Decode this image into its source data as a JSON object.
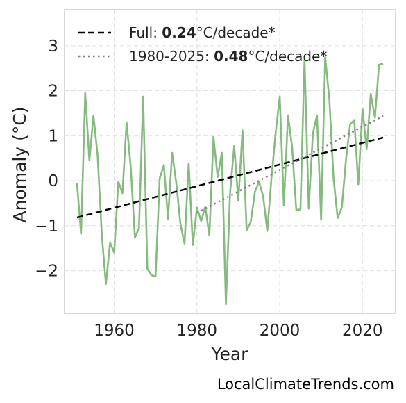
{
  "chart_data": {
    "type": "line",
    "xlabel": "Year",
    "ylabel": "Anomaly (°C)",
    "xlim": [
      1948,
      2028
    ],
    "ylim": [
      -2.95,
      3.8
    ],
    "xticks": [
      1960,
      1980,
      2000,
      2020
    ],
    "yticks": [
      -2,
      -1,
      0,
      1,
      2,
      3
    ],
    "ytick_labels": [
      "−2",
      "−1",
      "0",
      "1",
      "2",
      "3"
    ],
    "grid": true,
    "legend_position": "top-left",
    "colors": {
      "anomaly": "#86bb80",
      "trend_full": "#000000",
      "trend_recent": "#808080",
      "grid": "#e3e3e3",
      "frame": "#cccccc"
    },
    "series": [
      {
        "x": [
          1951,
          1952,
          1953,
          1954,
          1955,
          1956,
          1957,
          1958,
          1959,
          1960,
          1961,
          1962,
          1963,
          1964,
          1965,
          1966,
          1967,
          1968,
          1969,
          1970,
          1971,
          1972,
          1973,
          1974,
          1975,
          1976,
          1977,
          1978,
          1979,
          1980,
          1981,
          1982,
          1983,
          1984,
          1985,
          1986,
          1987,
          1988,
          1989,
          1990,
          1991,
          1992,
          1993,
          1994,
          1995,
          1996,
          1997,
          1998,
          1999,
          2000,
          2001,
          2002,
          2003,
          2004,
          2005,
          2006,
          2007,
          2008,
          2009,
          2010,
          2011,
          2012,
          2013,
          2014,
          2015,
          2016,
          2017,
          2018,
          2019,
          2020,
          2021,
          2022,
          2023,
          2024,
          2025
        ],
        "y": [
          -0.05,
          -1.18,
          1.95,
          0.45,
          1.45,
          0.55,
          -1.2,
          -2.3,
          -1.38,
          -1.6,
          -0.02,
          -0.28,
          1.3,
          0.3,
          -1.27,
          -1.05,
          1.87,
          -1.96,
          -2.1,
          -2.13,
          0.05,
          0.35,
          -0.85,
          0.62,
          -0.05,
          -0.95,
          -1.4,
          0.38,
          -1.43,
          -0.6,
          -0.9,
          -0.58,
          -1.22,
          0.97,
          0.08,
          0.62,
          -2.75,
          -0.28,
          0.78,
          -0.45,
          1.12,
          -1.1,
          -0.92,
          -0.25,
          -0.02,
          -0.35,
          -1.12,
          0.05,
          1.05,
          1.87,
          -0.55,
          1.45,
          0.75,
          -0.65,
          -0.64,
          2.7,
          -0.62,
          1.05,
          1.45,
          -0.87,
          2.75,
          1.8,
          0.05,
          -0.83,
          -0.6,
          0.45,
          1.25,
          1.35,
          -0.08,
          1.6,
          0.7,
          1.93,
          1.4,
          2.58,
          2.6
        ]
      },
      {
        "name": "Full",
        "rate": "0.24",
        "x": [
          1951,
          2025
        ],
        "y": [
          -0.82,
          0.96
        ]
      },
      {
        "name": "1980-2025",
        "rate": "0.48",
        "x": [
          1980,
          2025
        ],
        "y": [
          -0.72,
          1.44
        ]
      }
    ],
    "legend": [
      {
        "prefix": "Full: ",
        "value": "0.24",
        "suffix": "°C/decade*"
      },
      {
        "prefix": "1980-2025: ",
        "value": "0.48",
        "suffix": "°C/decade*"
      }
    ]
  },
  "credit": "LocalClimateTrends.com"
}
